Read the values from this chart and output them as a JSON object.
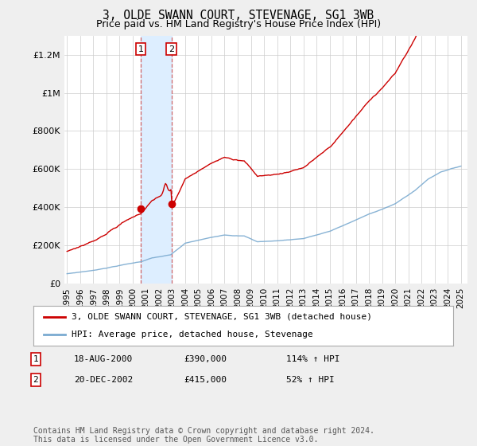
{
  "title": "3, OLDE SWANN COURT, STEVENAGE, SG1 3WB",
  "subtitle": "Price paid vs. HM Land Registry's House Price Index (HPI)",
  "ylim": [
    0,
    1300000
  ],
  "yticks": [
    0,
    200000,
    400000,
    600000,
    800000,
    1000000,
    1200000
  ],
  "ytick_labels": [
    "£0",
    "£200K",
    "£400K",
    "£600K",
    "£800K",
    "£1M",
    "£1.2M"
  ],
  "purchase1_year": 2000.626,
  "purchase1_price": 390000,
  "purchase2_year": 2002.962,
  "purchase2_price": 415000,
  "line1_color": "#cc0000",
  "line2_color": "#7aaad0",
  "shade_color": "#ddeeff",
  "bg_color": "#efefef",
  "plot_bg_color": "#ffffff",
  "grid_color": "#cccccc",
  "legend_line1": "3, OLDE SWANN COURT, STEVENAGE, SG1 3WB (detached house)",
  "legend_line2": "HPI: Average price, detached house, Stevenage",
  "purchase1_date": "18-AUG-2000",
  "purchase1_amount": "£390,000",
  "purchase1_hpi": "114% ↑ HPI",
  "purchase2_date": "20-DEC-2002",
  "purchase2_amount": "£415,000",
  "purchase2_hpi": "52% ↑ HPI",
  "footer": "Contains HM Land Registry data © Crown copyright and database right 2024.\nThis data is licensed under the Open Government Licence v3.0."
}
